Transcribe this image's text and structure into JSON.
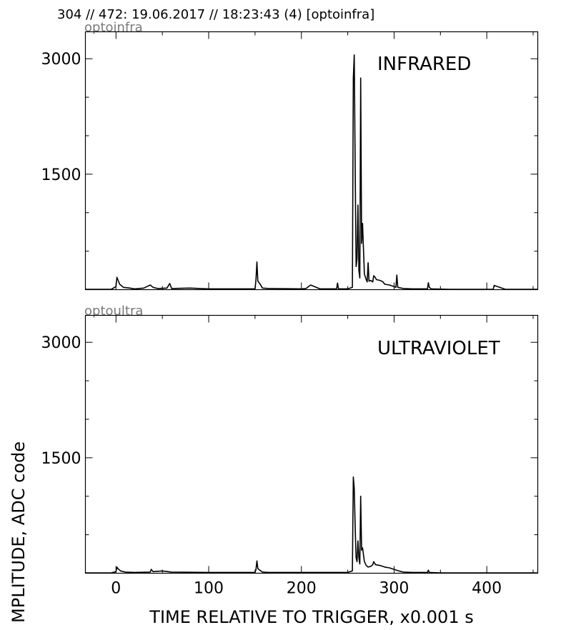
{
  "header": {
    "title": "304 // 472:   19.06.2017 // 18:23:43 (4)  [optoinfra]"
  },
  "axes": {
    "xlabel": "TIME RELATIVE TO TRIGGER,   x0.001 s",
    "ylabel": "MPLITUDE,  ADC code"
  },
  "chart_data": [
    {
      "type": "line",
      "tag": "optoinfra",
      "title": "INFRARED",
      "xlim": [
        -33,
        455
      ],
      "ylim": [
        0,
        3350
      ],
      "yticks": [
        1500,
        3000
      ],
      "xticks": [
        0,
        100,
        200,
        300,
        400
      ],
      "grid": false,
      "series": [
        {
          "color": "#000000",
          "x": [
            -33,
            -5,
            0,
            1,
            2,
            4,
            8,
            15,
            20,
            30,
            37,
            40,
            45,
            55,
            58,
            60,
            80,
            100,
            150,
            151,
            152,
            153,
            155,
            158,
            165,
            200,
            205,
            210,
            220,
            238,
            239,
            240,
            250,
            255,
            256,
            257,
            258,
            259,
            260,
            261,
            262,
            263,
            264,
            265,
            266,
            268,
            270,
            271,
            272,
            273,
            275,
            277,
            278,
            279,
            281,
            285,
            288,
            290,
            295,
            300,
            302,
            303,
            304,
            310,
            320,
            336,
            337,
            338,
            340,
            360,
            400,
            407,
            408,
            420,
            455
          ],
          "y": [
            5,
            5,
            40,
            160,
            130,
            70,
            30,
            20,
            10,
            20,
            60,
            30,
            15,
            20,
            80,
            15,
            20,
            10,
            10,
            130,
            360,
            110,
            80,
            20,
            15,
            10,
            15,
            60,
            10,
            10,
            85,
            10,
            10,
            30,
            2750,
            3050,
            1600,
            300,
            400,
            1100,
            250,
            150,
            2750,
            600,
            860,
            200,
            130,
            100,
            350,
            110,
            120,
            100,
            180,
            170,
            130,
            120,
            100,
            70,
            60,
            40,
            30,
            190,
            30,
            15,
            10,
            10,
            90,
            30,
            10,
            5,
            5,
            5,
            55,
            5,
            5
          ]
        }
      ]
    },
    {
      "type": "line",
      "tag": "optoultra",
      "title": "ULTRAVIOLET",
      "xlim": [
        -33,
        455
      ],
      "ylim": [
        0,
        3350
      ],
      "yticks": [
        1500,
        3000
      ],
      "xticks": [
        0,
        100,
        200,
        300,
        400
      ],
      "grid": false,
      "series": [
        {
          "color": "#000000",
          "x": [
            -33,
            -5,
            0,
            1,
            2,
            5,
            10,
            20,
            37,
            38,
            40,
            50,
            60,
            100,
            150,
            151,
            152,
            153,
            155,
            158,
            165,
            200,
            250,
            255,
            256,
            257,
            258,
            259,
            260,
            261,
            262,
            263,
            264,
            265,
            266,
            268,
            270,
            272,
            275,
            277,
            278,
            280,
            285,
            290,
            295,
            300,
            305,
            310,
            320,
            336,
            337,
            338,
            350,
            400,
            455
          ],
          "y": [
            5,
            5,
            20,
            80,
            60,
            30,
            15,
            10,
            15,
            50,
            20,
            30,
            15,
            10,
            10,
            50,
            160,
            60,
            40,
            15,
            10,
            10,
            10,
            30,
            1250,
            1100,
            600,
            200,
            150,
            420,
            200,
            120,
            1000,
            300,
            330,
            150,
            100,
            80,
            90,
            110,
            150,
            110,
            100,
            80,
            70,
            50,
            30,
            15,
            10,
            10,
            40,
            10,
            5,
            5,
            5
          ]
        }
      ]
    }
  ]
}
